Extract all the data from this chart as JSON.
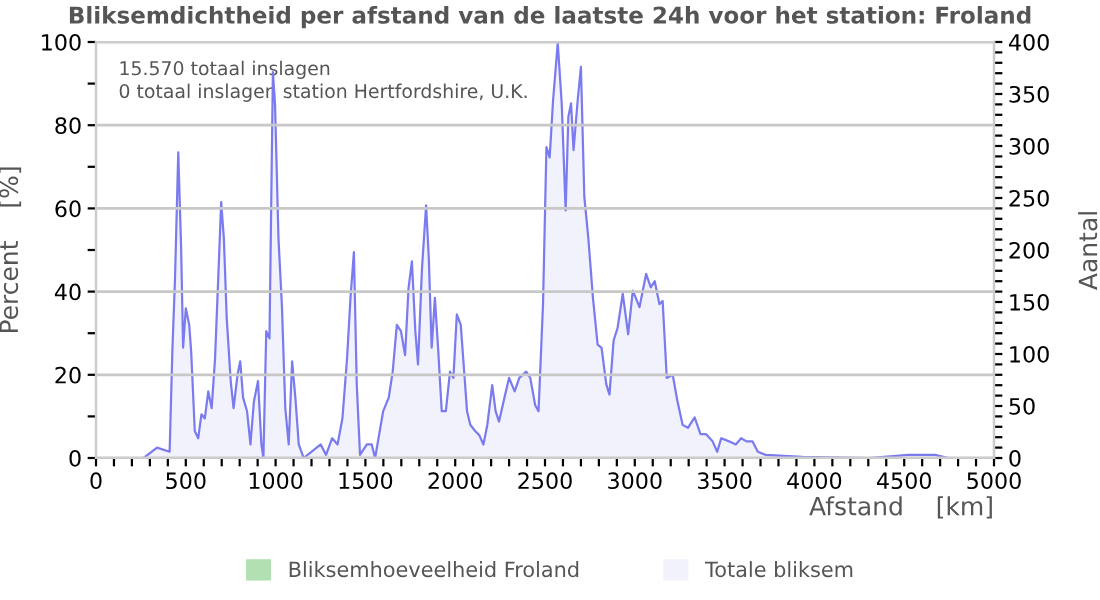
{
  "chart_data": {
    "type": "area",
    "title": "Bliksemdichtheid per afstand van de laatste 24h voor het station: Froland",
    "annotations": [
      "15.570 totaal inslagen",
      "0 totaal inslagen station Hertfordshire, U.K."
    ],
    "xlabel": "Afstand    [km]",
    "ylabel": "Percent    [%]",
    "y2label": "Aantal",
    "xlim": [
      0,
      5000
    ],
    "ylim": [
      0,
      100
    ],
    "y2lim": [
      0,
      400
    ],
    "xticks": [
      0,
      {
        "value": 100,
        "label": null
      },
      {
        "value": 200,
        "label": null
      },
      {
        "value": 300,
        "label": null
      },
      {
        "value": 400,
        "label": null
      },
      500,
      {
        "value": 600,
        "label": null
      },
      {
        "value": 700,
        "label": null
      },
      {
        "value": 800,
        "label": null
      },
      {
        "value": 900,
        "label": null
      },
      1000,
      {
        "value": 1100,
        "label": null
      },
      {
        "value": 1200,
        "label": null
      },
      {
        "value": 1300,
        "label": null
      },
      {
        "value": 1400,
        "label": null
      },
      1500,
      {
        "value": 1600,
        "label": null
      },
      {
        "value": 1700,
        "label": null
      },
      {
        "value": 1800,
        "label": null
      },
      {
        "value": 1900,
        "label": null
      },
      2000,
      {
        "value": 2100,
        "label": null
      },
      {
        "value": 2200,
        "label": null
      },
      {
        "value": 2300,
        "label": null
      },
      {
        "value": 2400,
        "label": null
      },
      2500,
      {
        "value": 2600,
        "label": null
      },
      {
        "value": 2700,
        "label": null
      },
      {
        "value": 2800,
        "label": null
      },
      {
        "value": 2900,
        "label": null
      },
      3000,
      {
        "value": 3100,
        "label": null
      },
      {
        "value": 3200,
        "label": null
      },
      {
        "value": 3300,
        "label": null
      },
      {
        "value": 3400,
        "label": null
      },
      3500,
      {
        "value": 3600,
        "label": null
      },
      {
        "value": 3700,
        "label": null
      },
      {
        "value": 3800,
        "label": null
      },
      {
        "value": 3900,
        "label": null
      },
      4000,
      {
        "value": 4100,
        "label": null
      },
      {
        "value": 4200,
        "label": null
      },
      {
        "value": 4300,
        "label": null
      },
      {
        "value": 4400,
        "label": null
      },
      4500,
      {
        "value": 4600,
        "label": null
      },
      {
        "value": 4700,
        "label": null
      },
      {
        "value": 4800,
        "label": null
      },
      {
        "value": 4900,
        "label": null
      },
      5000
    ],
    "yticks": [
      0,
      {
        "value": 10,
        "label": null
      },
      20,
      {
        "value": 30,
        "label": null
      },
      40,
      {
        "value": 50,
        "label": null
      },
      60,
      {
        "value": 70,
        "label": null
      },
      80,
      {
        "value": 90,
        "label": null
      },
      100
    ],
    "y2ticks": [
      0,
      {
        "value": 10,
        "label": null
      },
      {
        "value": 20,
        "label": null
      },
      {
        "value": 30,
        "label": null
      },
      {
        "value": 40,
        "label": null
      },
      50,
      {
        "value": 60,
        "label": null
      },
      {
        "value": 70,
        "label": null
      },
      {
        "value": 80,
        "label": null
      },
      {
        "value": 90,
        "label": null
      },
      100,
      {
        "value": 110,
        "label": null
      },
      {
        "value": 120,
        "label": null
      },
      {
        "value": 130,
        "label": null
      },
      {
        "value": 140,
        "label": null
      },
      150,
      {
        "value": 160,
        "label": null
      },
      {
        "value": 170,
        "label": null
      },
      {
        "value": 180,
        "label": null
      },
      {
        "value": 190,
        "label": null
      },
      200,
      {
        "value": 210,
        "label": null
      },
      {
        "value": 220,
        "label": null
      },
      {
        "value": 230,
        "label": null
      },
      {
        "value": 240,
        "label": null
      },
      250,
      {
        "value": 260,
        "label": null
      },
      {
        "value": 270,
        "label": null
      },
      {
        "value": 280,
        "label": null
      },
      {
        "value": 290,
        "label": null
      },
      300,
      {
        "value": 310,
        "label": null
      },
      {
        "value": 320,
        "label": null
      },
      {
        "value": 330,
        "label": null
      },
      {
        "value": 340,
        "label": null
      },
      350,
      {
        "value": 360,
        "label": null
      },
      {
        "value": 370,
        "label": null
      },
      {
        "value": 380,
        "label": null
      },
      {
        "value": 390,
        "label": null
      },
      400
    ],
    "grid": "y",
    "legend": "bottom",
    "series": [
      {
        "name": "Bliksemhoeveelheid Froland",
        "color": "#b3e0b3"
      },
      {
        "name": "Totale bliksem",
        "color": "#7b7bf0",
        "axis": "y2",
        "x": [
          265,
          340,
          410,
          425,
          440,
          458,
          474,
          485,
          500,
          519,
          530,
          550,
          569,
          587,
          606,
          625,
          644,
          663,
          682,
          697,
          712,
          728,
          750,
          766,
          788,
          803,
          819,
          841,
          860,
          879,
          902,
          921,
          932,
          948,
          966,
          985,
          997,
          1016,
          1035,
          1054,
          1073,
          1092,
          1110,
          1129,
          1156,
          1251,
          1281,
          1315,
          1345,
          1372,
          1398,
          1417,
          1436,
          1452,
          1470,
          1508,
          1535,
          1554,
          1573,
          1599,
          1630,
          1652,
          1675,
          1698,
          1721,
          1740,
          1759,
          1778,
          1793,
          1815,
          1838,
          1853,
          1869,
          1887,
          1906,
          1925,
          1948,
          1971,
          1990,
          2009,
          2031,
          2047,
          2066,
          2084,
          2111,
          2134,
          2157,
          2179,
          2206,
          2225,
          2244,
          2274,
          2300,
          2331,
          2357,
          2395,
          2418,
          2445,
          2464,
          2489,
          2508,
          2526,
          2545,
          2571,
          2593,
          2615,
          2630,
          2645,
          2659,
          2682,
          2700,
          2719,
          2741,
          2767,
          2793,
          2815,
          2841,
          2859,
          2882,
          2904,
          2933,
          2963,
          2989,
          3026,
          3063,
          3089,
          3111,
          3137,
          3155,
          3178,
          3211,
          3237,
          3266,
          3296,
          3333,
          3366,
          3396,
          3433,
          3459,
          3481,
          3525,
          3562,
          3592,
          3622,
          3655,
          3685,
          3729,
          3933,
          4302,
          4524,
          4672,
          4746
        ],
        "values": [
          0,
          10,
          6,
          102,
          173,
          294,
          202,
          106,
          144,
          128,
          102,
          26,
          19,
          42,
          38,
          64,
          48,
          96,
          179,
          246,
          211,
          134,
          74,
          48,
          80,
          93,
          58,
          45,
          13,
          54,
          74,
          13,
          0,
          122,
          115,
          371,
          339,
          211,
          147,
          48,
          13,
          93,
          58,
          13,
          0,
          13,
          3,
          19,
          13,
          38,
          96,
          154,
          198,
          70,
          3,
          13,
          13,
          0,
          19,
          45,
          58,
          83,
          128,
          122,
          99,
          163,
          189,
          122,
          90,
          182,
          243,
          192,
          106,
          154,
          102,
          45,
          45,
          83,
          77,
          138,
          128,
          90,
          45,
          32,
          26,
          22,
          13,
          32,
          70,
          45,
          35,
          58,
          77,
          64,
          77,
          83,
          77,
          51,
          45,
          148,
          299,
          289,
          344,
          399,
          341,
          238,
          328,
          341,
          296,
          344,
          376,
          251,
          212,
          154,
          109,
          106,
          71,
          61,
          113,
          125,
          158,
          119,
          161,
          145,
          177,
          164,
          170,
          148,
          151,
          77,
          80,
          55,
          32,
          29,
          39,
          23,
          23,
          16,
          6,
          19,
          16,
          13,
          19,
          16,
          16,
          6,
          3,
          1,
          0,
          3,
          3,
          0
        ]
      }
    ]
  }
}
